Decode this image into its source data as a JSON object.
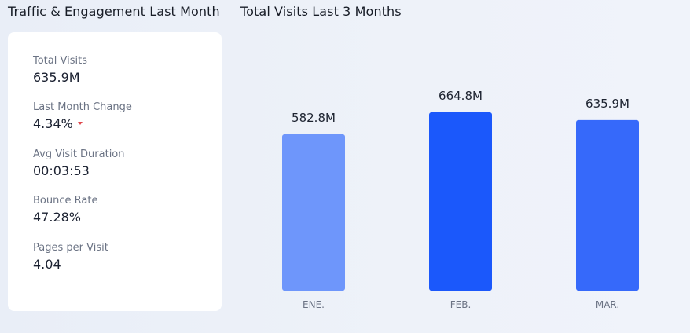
{
  "left_panel": {
    "title": "Traffic & Engagement Last Month",
    "stats": [
      {
        "label": "Total Visits",
        "value": "635.9M"
      },
      {
        "label": "Last Month Change",
        "value": "4.34%",
        "trend": "down",
        "trend_color": "#e0484d"
      },
      {
        "label": "Avg Visit Duration",
        "value": "00:03:53"
      },
      {
        "label": "Bounce Rate",
        "value": "47.28%"
      },
      {
        "label": "Pages per Visit",
        "value": "4.04"
      }
    ]
  },
  "chart_panel": {
    "title": "Total Visits Last 3 Months"
  },
  "chart_data": {
    "type": "bar",
    "title": "Total Visits Last 3 Months",
    "categories": [
      "ENE.",
      "FEB.",
      "MAR."
    ],
    "values": [
      582.8,
      664.8,
      635.9
    ],
    "value_labels": [
      "582.8M",
      "664.8M",
      "635.9M"
    ],
    "unit": "M",
    "colors": [
      "#6e96fb",
      "#1b58fb",
      "#3669fa"
    ],
    "xlabel": "",
    "ylabel": "",
    "grid": false,
    "legend": "none"
  }
}
